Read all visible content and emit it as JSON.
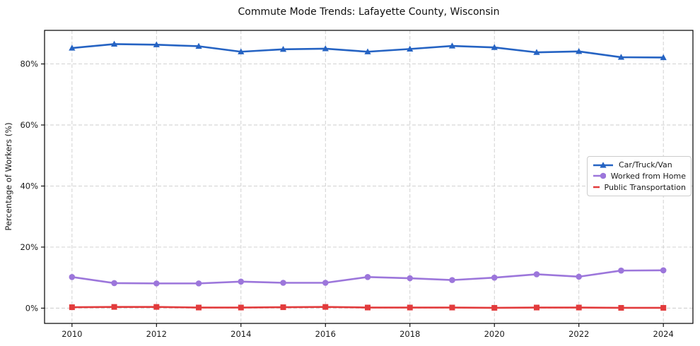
{
  "figure": {
    "title": "Commute Mode Trends: Lafayette County, Wisconsin",
    "ylabel": "Percentage of Workers (%)"
  },
  "colors": {
    "background": "#ffffff",
    "grid": "#cccccc",
    "axis_border": "#000000",
    "text": "#1a1a1a",
    "series_blue": "#2563c3",
    "series_purple": "#9c76db",
    "series_red": "#e23b3c"
  },
  "chart_data": {
    "type": "line",
    "title": "Commute Mode Trends: Lafayette County, Wisconsin",
    "xlabel": "",
    "ylabel": "Percentage of Workers (%)",
    "x": [
      2010,
      2011,
      2012,
      2013,
      2014,
      2015,
      2016,
      2017,
      2018,
      2019,
      2020,
      2021,
      2022,
      2023,
      2024
    ],
    "series": [
      {
        "name": "Car/Truck/Van",
        "color": "#2563c3",
        "marker": "triangle",
        "values": [
          85.2,
          86.5,
          86.3,
          85.8,
          84.0,
          84.8,
          85.0,
          84.0,
          84.9,
          85.9,
          85.4,
          83.8,
          84.1,
          82.2,
          82.1
        ]
      },
      {
        "name": "Worked from Home",
        "color": "#9c76db",
        "marker": "circle",
        "values": [
          10.2,
          8.2,
          8.1,
          8.1,
          8.7,
          8.3,
          8.3,
          10.2,
          9.8,
          9.2,
          10.0,
          11.1,
          10.3,
          12.3,
          12.4
        ]
      },
      {
        "name": "Public Transportation",
        "color": "#e23b3c",
        "marker": "square",
        "values": [
          0.3,
          0.4,
          0.4,
          0.2,
          0.2,
          0.3,
          0.4,
          0.2,
          0.2,
          0.2,
          0.1,
          0.2,
          0.2,
          0.1,
          0.1
        ]
      }
    ],
    "xticks": [
      2010,
      2012,
      2014,
      2016,
      2018,
      2020,
      2022,
      2024
    ],
    "xtick_labels": [
      "2010",
      "2012",
      "2014",
      "2016",
      "2018",
      "2020",
      "2022",
      "2024"
    ],
    "yticks": [
      0,
      20,
      40,
      60,
      80
    ],
    "ytick_labels": [
      "0%",
      "20%",
      "40%",
      "60%",
      "80%"
    ],
    "xlim": [
      2009.35,
      2024.7
    ],
    "ylim": [
      -5,
      91
    ],
    "grid": true,
    "grid_style": "dashed",
    "legend_position": "center-right"
  }
}
